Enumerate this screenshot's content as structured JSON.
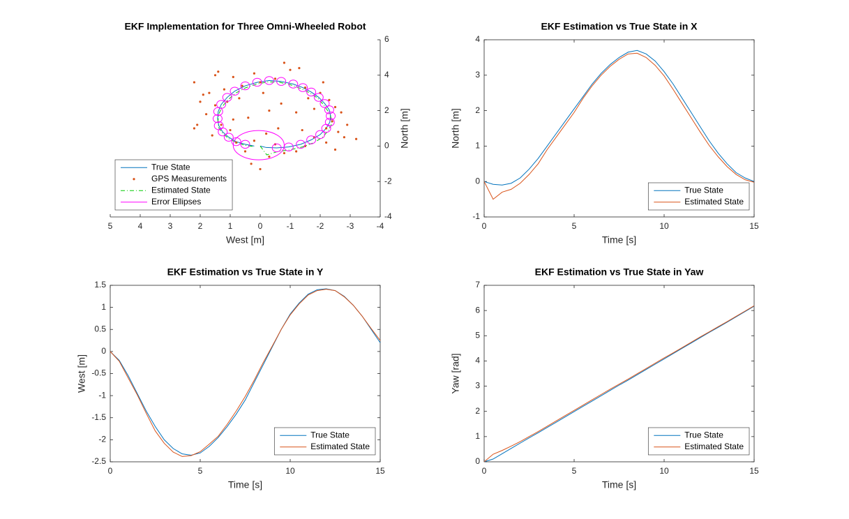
{
  "chart_data": [
    {
      "type": "trajectory",
      "title": "EKF Implementation for Three Omni-Wheeled Robot",
      "xlabel": "West [m]",
      "ylabel": "North [m]",
      "yaxis_location": "right",
      "box": false,
      "xlim": [
        5,
        -4
      ],
      "xticks": [
        5,
        4,
        3,
        2,
        1,
        0,
        -1,
        -2,
        -3,
        -4
      ],
      "ylim": [
        -4,
        6
      ],
      "yticks": [
        -4,
        -2,
        0,
        2,
        4,
        6
      ],
      "legend": "lower left",
      "series": [
        {
          "name": "True State",
          "color": "#0072BD",
          "style": "solid",
          "x": [
            0,
            -0.2,
            -0.55,
            -0.95,
            -1.35,
            -1.7,
            -2.0,
            -2.2,
            -2.32,
            -2.35,
            -2.3,
            -2.15,
            -1.95,
            -1.7,
            -1.42,
            -1.1,
            -0.7,
            -0.3,
            0.1,
            0.5,
            0.85,
            1.1,
            1.3,
            1.4,
            1.42,
            1.38,
            1.25,
            1.05,
            0.8,
            0.5,
            0.2
          ],
          "y": [
            0,
            -0.08,
            -0.1,
            -0.05,
            0.1,
            0.35,
            0.65,
            1.0,
            1.35,
            1.7,
            2.05,
            2.4,
            2.75,
            3.05,
            3.3,
            3.5,
            3.65,
            3.7,
            3.6,
            3.4,
            3.1,
            2.75,
            2.35,
            1.95,
            1.55,
            1.15,
            0.8,
            0.5,
            0.25,
            0.1,
            0.0
          ]
        },
        {
          "name": "GPS Measurements",
          "color": "#D95319",
          "style": "dots",
          "x": [
            1.4,
            0.9,
            0.2,
            -0.5,
            -1.0,
            -1.3,
            -0.8,
            1.7,
            2.0,
            1.8,
            2.1,
            2.2,
            1.5,
            1.2,
            0.6,
            -0.1,
            -1.5,
            -2.0,
            -2.3,
            -2.5,
            -2.7,
            -2.4,
            -2.9,
            -3.2,
            -2.6,
            -2.2,
            -2.5,
            -1.8,
            -1.5,
            -1.2,
            -0.8,
            -0.3,
            0.0,
            0.3,
            0.5,
            0.8,
            -0.2,
            0.2,
            -0.5,
            1.0,
            1.6,
            1.9,
            1.3,
            0.9,
            -0.7,
            -1.2,
            -1.6,
            -0.3,
            0.4,
            1.1,
            -2.1,
            -1.8,
            -2.2,
            2.2,
            1.5,
            0.0,
            -0.6,
            -1.4,
            -2.8,
            0.7
          ],
          "y": [
            4.2,
            3.9,
            4.1,
            3.8,
            4.3,
            4.4,
            4.7,
            3.0,
            2.5,
            1.8,
            1.2,
            1.0,
            2.3,
            3.2,
            3.4,
            3.0,
            3.3,
            3.0,
            2.6,
            2.2,
            1.9,
            1.4,
            1.2,
            0.4,
            0.8,
            0.2,
            -0.2,
            0.5,
            0.0,
            -0.3,
            -0.4,
            -0.6,
            -1.3,
            -1.0,
            -0.3,
            0.2,
            0.7,
            0.3,
            0.1,
            0.9,
            0.6,
            2.9,
            1.2,
            1.5,
            2.4,
            1.9,
            2.7,
            2.0,
            1.6,
            2.5,
            3.6,
            2.1,
            1.0,
            3.6,
            4.0,
            3.6,
            1.0,
            0.9,
            0.5,
            2.7
          ]
        },
        {
          "name": "Estimated State",
          "color": "#00CC00",
          "style": "dashdot",
          "x": [
            0,
            -0.22,
            -0.6,
            -0.98,
            -1.4,
            -1.8,
            -2.08,
            -2.28,
            -2.38,
            -2.36,
            -2.27,
            -2.1,
            -1.92,
            -1.65,
            -1.35,
            -1.02,
            -0.65,
            -0.25,
            0.12,
            0.5,
            0.83,
            1.08,
            1.28,
            1.38,
            1.41,
            1.38,
            1.24,
            1.05,
            0.8,
            0.52,
            0.25
          ],
          "y": [
            0,
            -0.5,
            -0.3,
            -0.22,
            -0.05,
            0.2,
            0.5,
            0.9,
            1.25,
            1.6,
            1.95,
            2.35,
            2.7,
            3.0,
            3.25,
            3.45,
            3.6,
            3.62,
            3.5,
            3.28,
            2.98,
            2.6,
            2.2,
            1.8,
            1.4,
            1.02,
            0.7,
            0.42,
            0.2,
            0.05,
            -0.02
          ]
        },
        {
          "name": "Error Ellipses",
          "color": "#FF00FF",
          "style": "ellipse",
          "x": [
            0.05,
            -0.55,
            -0.95,
            -1.35,
            -1.7,
            -2.0,
            -2.2,
            -2.32,
            -2.35,
            -2.3,
            -2.15,
            -1.95,
            -1.7,
            -1.42,
            -1.1,
            -0.7,
            -0.3,
            0.1,
            0.5,
            0.85,
            1.1,
            1.3,
            1.4,
            1.42,
            1.38,
            1.25,
            1.05,
            0.8,
            0.5
          ],
          "y": [
            0.05,
            -0.1,
            -0.05,
            0.1,
            0.35,
            0.65,
            1.0,
            1.35,
            1.7,
            2.05,
            2.4,
            2.75,
            3.05,
            3.3,
            3.5,
            3.65,
            3.7,
            3.6,
            3.4,
            3.1,
            2.75,
            2.35,
            1.95,
            1.55,
            1.15,
            0.8,
            0.5,
            0.25,
            0.1
          ],
          "width": [
            1.7,
            0.3,
            0.3,
            0.3,
            0.3,
            0.3,
            0.3,
            0.3,
            0.3,
            0.3,
            0.3,
            0.3,
            0.3,
            0.3,
            0.3,
            0.3,
            0.3,
            0.3,
            0.3,
            0.3,
            0.3,
            0.3,
            0.3,
            0.3,
            0.3,
            0.3,
            0.3,
            0.3,
            0.3
          ],
          "height": [
            1.65,
            0.45,
            0.45,
            0.45,
            0.45,
            0.45,
            0.45,
            0.45,
            0.45,
            0.45,
            0.45,
            0.45,
            0.45,
            0.45,
            0.45,
            0.45,
            0.45,
            0.45,
            0.45,
            0.45,
            0.45,
            0.45,
            0.45,
            0.45,
            0.45,
            0.45,
            0.45,
            0.45,
            0.45
          ]
        }
      ]
    },
    {
      "type": "line",
      "title": "EKF Estimation vs True State in X",
      "xlabel": "Time [s]",
      "ylabel": "North [m]",
      "yaxis_location": "left",
      "box": true,
      "x": [
        0,
        0.5,
        1,
        1.5,
        2,
        2.5,
        3,
        3.5,
        4,
        4.5,
        5,
        5.5,
        6,
        6.5,
        7,
        7.5,
        8,
        8.5,
        9,
        9.5,
        10,
        10.5,
        11,
        11.5,
        12,
        12.5,
        13,
        13.5,
        14,
        14.5,
        15
      ],
      "xlim": [
        0,
        15
      ],
      "xticks": [
        0,
        5,
        10,
        15
      ],
      "ylim": [
        -1,
        4
      ],
      "yticks": [
        -1,
        0,
        1,
        2,
        3,
        4
      ],
      "legend": "lower right",
      "series": [
        {
          "name": "True State",
          "color": "#0072BD",
          "values": [
            0,
            -0.08,
            -0.1,
            -0.05,
            0.1,
            0.35,
            0.65,
            1.0,
            1.35,
            1.7,
            2.05,
            2.4,
            2.75,
            3.05,
            3.3,
            3.5,
            3.65,
            3.7,
            3.6,
            3.4,
            3.1,
            2.75,
            2.35,
            1.95,
            1.55,
            1.15,
            0.8,
            0.5,
            0.25,
            0.1,
            0.0
          ]
        },
        {
          "name": "Estimated State",
          "color": "#D95319",
          "values": [
            0,
            -0.5,
            -0.3,
            -0.22,
            -0.05,
            0.2,
            0.5,
            0.9,
            1.25,
            1.6,
            1.95,
            2.35,
            2.7,
            3.0,
            3.25,
            3.45,
            3.6,
            3.62,
            3.5,
            3.28,
            2.98,
            2.6,
            2.2,
            1.8,
            1.4,
            1.02,
            0.7,
            0.42,
            0.2,
            0.05,
            -0.02
          ]
        }
      ]
    },
    {
      "type": "line",
      "title": "EKF Estimation vs True State in Y",
      "xlabel": "Time [s]",
      "ylabel": "West [m]",
      "yaxis_location": "left",
      "box": true,
      "x": [
        0,
        0.5,
        1,
        1.5,
        2,
        2.5,
        3,
        3.5,
        4,
        4.5,
        5,
        5.5,
        6,
        6.5,
        7,
        7.5,
        8,
        8.5,
        9,
        9.5,
        10,
        10.5,
        11,
        11.5,
        12,
        12.5,
        13,
        13.5,
        14,
        14.5,
        15
      ],
      "xlim": [
        0,
        15
      ],
      "xticks": [
        0,
        5,
        10,
        15
      ],
      "ylim": [
        -2.5,
        1.5
      ],
      "yticks": [
        -2.5,
        -2,
        -1.5,
        -1,
        -0.5,
        0,
        0.5,
        1,
        1.5
      ],
      "legend": "lower right",
      "series": [
        {
          "name": "True State",
          "color": "#0072BD",
          "values": [
            0,
            -0.2,
            -0.55,
            -0.95,
            -1.35,
            -1.7,
            -2.0,
            -2.2,
            -2.32,
            -2.35,
            -2.3,
            -2.15,
            -1.95,
            -1.7,
            -1.42,
            -1.1,
            -0.7,
            -0.3,
            0.1,
            0.5,
            0.85,
            1.1,
            1.3,
            1.4,
            1.42,
            1.38,
            1.25,
            1.05,
            0.8,
            0.5,
            0.2
          ]
        },
        {
          "name": "Estimated State",
          "color": "#D95319",
          "values": [
            0,
            -0.22,
            -0.6,
            -0.98,
            -1.4,
            -1.8,
            -2.08,
            -2.28,
            -2.38,
            -2.36,
            -2.27,
            -2.1,
            -1.92,
            -1.65,
            -1.35,
            -1.02,
            -0.65,
            -0.25,
            0.12,
            0.5,
            0.83,
            1.08,
            1.28,
            1.38,
            1.41,
            1.38,
            1.24,
            1.05,
            0.8,
            0.52,
            0.25
          ]
        }
      ]
    },
    {
      "type": "line",
      "title": "EKF Estimation vs True State in Yaw",
      "xlabel": "Time [s]",
      "ylabel": "Yaw [rad]",
      "yaxis_location": "left",
      "box": true,
      "x": [
        0,
        0.5,
        1,
        1.5,
        2,
        2.5,
        3,
        3.5,
        4,
        4.5,
        5,
        5.5,
        6,
        6.5,
        7,
        7.5,
        8,
        8.5,
        9,
        9.5,
        10,
        10.5,
        11,
        11.5,
        12,
        12.5,
        13,
        13.5,
        14,
        14.5,
        15
      ],
      "xlim": [
        0,
        15
      ],
      "xticks": [
        0,
        5,
        10,
        15
      ],
      "ylim": [
        0,
        7
      ],
      "yticks": [
        0,
        1,
        2,
        3,
        4,
        5,
        6,
        7
      ],
      "legend": "lower right",
      "series": [
        {
          "name": "True State",
          "color": "#0072BD",
          "values": [
            0,
            0.11,
            0.32,
            0.53,
            0.74,
            0.95,
            1.15,
            1.36,
            1.57,
            1.78,
            1.99,
            2.2,
            2.41,
            2.62,
            2.83,
            3.04,
            3.24,
            3.45,
            3.66,
            3.87,
            4.08,
            4.29,
            4.5,
            4.71,
            4.92,
            5.13,
            5.33,
            5.54,
            5.75,
            5.96,
            6.17
          ]
        },
        {
          "name": "Estimated State",
          "color": "#D95319",
          "values": [
            0,
            0.3,
            0.45,
            0.62,
            0.8,
            1.0,
            1.2,
            1.41,
            1.62,
            1.83,
            2.04,
            2.25,
            2.46,
            2.67,
            2.88,
            3.08,
            3.28,
            3.49,
            3.7,
            3.91,
            4.12,
            4.32,
            4.53,
            4.74,
            4.95,
            5.15,
            5.36,
            5.56,
            5.77,
            5.98,
            6.19
          ]
        }
      ]
    }
  ]
}
